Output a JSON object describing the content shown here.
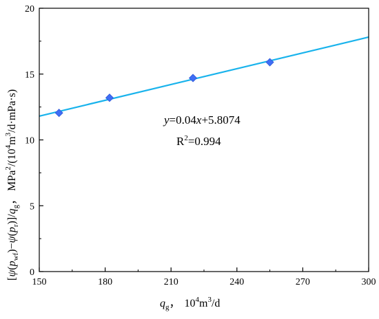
{
  "chart_data": {
    "type": "scatter",
    "x": [
      159,
      182,
      220,
      255
    ],
    "y": [
      12.05,
      13.2,
      14.7,
      15.9
    ],
    "xlim": [
      150,
      300
    ],
    "ylim": [
      0,
      20
    ],
    "xticks": [
      150,
      180,
      210,
      240,
      270,
      300
    ],
    "yticks": [
      0,
      5,
      10,
      15,
      20
    ],
    "xtick_labels": [
      "150",
      "180",
      "210",
      "240",
      "270",
      "300"
    ],
    "ytick_labels": [
      "0",
      "5",
      "10",
      "15",
      "20"
    ],
    "fit": {
      "slope": 0.04,
      "intercept": 5.8074
    },
    "xlabel": "q_g, 10^4 m^3/d",
    "ylabel": "[ψ(p_wf)−ψ(p_r)]/q_g, MPa^2/(10^4 m^3/d·mPa·s)",
    "xlabel_parts": {
      "var": "q",
      "var_sub": "g",
      "sep": "，",
      "unit_a": "10",
      "unit_a_sup": "4",
      "unit_b": "m",
      "unit_b_sup": "3",
      "unit_c": "/d"
    },
    "ylabel_parts": {
      "p1": "[",
      "psi1": "ψ",
      "p2": "(",
      "pvar1": "p",
      "sub1": "wf",
      "p3": ")−",
      "psi2": "ψ",
      "p4": "(",
      "pvar2": "p",
      "sub2": "r",
      "p5": ")]/",
      "qvar": "q",
      "qsub": "g",
      "p6": "，  MPa",
      "sup1": "2",
      "p7": "/(10",
      "sup2": "4",
      "p8": "m",
      "sup3": "3",
      "p9": "/d·mPa·s)"
    },
    "annotation": {
      "eq_y": "y",
      "eq_mid": "=0.04",
      "eq_x": "x",
      "eq_end": "+5.8074",
      "r_base": "R",
      "r_sup": "2",
      "r_val": "=0.994"
    },
    "grid": false,
    "marker_color": "#3f6ef5",
    "line_color": "#19b3ec"
  }
}
